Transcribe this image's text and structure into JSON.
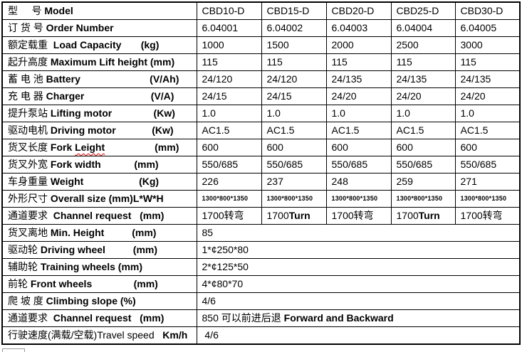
{
  "document": {
    "colors": {
      "background": "#ffffff",
      "table_border": "#000000",
      "text": "#000000",
      "spellcheck_underline": "#e00000",
      "fragment_border": "#9a9a9a"
    },
    "table": {
      "models": [
        "CBD10-D",
        "CBD15-D",
        "CBD20-D",
        "CBD25-D",
        "CBD30-D"
      ],
      "rows": [
        {
          "name": "model",
          "label": [
            {
              "text": "型     号 "
            },
            {
              "text": "Model",
              "bold": true
            }
          ],
          "values": [
            "CBD10-D",
            "CBD15-D",
            "CBD20-D",
            "CBD25-D",
            "CBD30-D"
          ]
        },
        {
          "name": "order-number",
          "label": [
            {
              "text": "订 货 号 "
            },
            {
              "text": "Order Number",
              "bold": true
            }
          ],
          "values": [
            "6.04001",
            "6.04002",
            "6.04003",
            "6.04004",
            "6.04005"
          ]
        },
        {
          "name": "load-capacity",
          "label": [
            {
              "text": "额定载重  "
            },
            {
              "text": "Load Capacity       (kg)",
              "bold": true
            }
          ],
          "values": [
            "1000",
            "1500",
            "2000",
            "2500",
            "3000"
          ]
        },
        {
          "name": "max-lift-height",
          "label": [
            {
              "text": "起升高度 "
            },
            {
              "text": "Maximum Lift height (mm)",
              "bold": true
            }
          ],
          "values": [
            "115",
            "115",
            "115",
            "115",
            "115"
          ]
        },
        {
          "name": "battery",
          "label": [
            {
              "text": "蓄 电 池 "
            },
            {
              "text": "Battery                         (V/Ah)",
              "bold": true
            }
          ],
          "values": [
            "24/120",
            "24/120",
            "24/135",
            "24/135",
            "24/135"
          ]
        },
        {
          "name": "charger",
          "label": [
            {
              "text": "充 电 器 "
            },
            {
              "text": "Charger                        (V/A)",
              "bold": true
            }
          ],
          "values": [
            "24/15",
            "24/15",
            "24/20",
            "24/20",
            "24/20"
          ]
        },
        {
          "name": "lifting-motor",
          "label": [
            {
              "text": "提升泵站 "
            },
            {
              "text": "Lifting motor               (Kw)",
              "bold": true
            }
          ],
          "values": [
            "1.0",
            "1.0",
            "1.0",
            "1.0",
            "1.0"
          ]
        },
        {
          "name": "driving-motor",
          "label": [
            {
              "text": "驱动电机 "
            },
            {
              "text": "Driving motor             (Kw)",
              "bold": true
            }
          ],
          "values": [
            "AC1.5",
            "AC1.5",
            "AC1.5",
            "AC1.5",
            "AC1.5"
          ]
        },
        {
          "name": "fork-length",
          "label": [
            {
              "text": "货叉长度 "
            },
            {
              "text": "Fork ",
              "bold": true
            },
            {
              "text": "Leight",
              "bold": true,
              "wavy": true
            },
            {
              "text": "                  (mm)",
              "bold": true
            }
          ],
          "values": [
            "600",
            "600",
            "600",
            "600",
            "600"
          ]
        },
        {
          "name": "fork-width",
          "label": [
            {
              "text": "货叉外宽 "
            },
            {
              "text": "Fork width            (mm)",
              "bold": true
            }
          ],
          "values": [
            "550/685",
            "550/685",
            "550/685",
            "550/685",
            "550/685"
          ]
        },
        {
          "name": "weight",
          "label": [
            {
              "text": "车身重量 "
            },
            {
              "text": "Weight                    (Kg)",
              "bold": true
            }
          ],
          "values": [
            "226",
            "237",
            "248",
            "259",
            "271"
          ]
        },
        {
          "name": "overall-size",
          "label": [
            {
              "text": "外形尺寸 "
            },
            {
              "text": "Overall size (mm)L*W*H",
              "bold": true
            }
          ],
          "values": [
            "1300*800*1350",
            "1300*800*1350",
            "1300*800*1350",
            "1300*800*1350",
            "1300*800*1350"
          ],
          "small": true
        },
        {
          "name": "channel-request-turn",
          "label": [
            {
              "text": "通道要求  "
            },
            {
              "text": "Channel request   (mm)",
              "bold": true
            }
          ],
          "values": [
            "1700转弯",
            [
              {
                "text": "1700"
              },
              {
                "text": "Turn",
                "bold": true
              }
            ],
            "1700转弯",
            [
              {
                "text": "1700"
              },
              {
                "text": "Turn",
                "bold": true
              }
            ],
            "1700转弯"
          ]
        },
        {
          "name": "min-height",
          "label": [
            {
              "text": "货叉离地 "
            },
            {
              "text": "Min. Height          (mm)",
              "bold": true
            }
          ],
          "values": [
            "85"
          ],
          "span": 5
        },
        {
          "name": "driving-wheel",
          "label": [
            {
              "text": "驱动轮 "
            },
            {
              "text": "Driving wheel          (mm)",
              "bold": true
            }
          ],
          "values": [
            "1*¢250*80"
          ],
          "span": 5
        },
        {
          "name": "training-wheels",
          "label": [
            {
              "text": "辅助轮 "
            },
            {
              "text": "Training wheels (mm)",
              "bold": true
            }
          ],
          "values": [
            "2*¢125*50"
          ],
          "span": 5
        },
        {
          "name": "front-wheels",
          "label": [
            {
              "text": "前轮 "
            },
            {
              "text": "Front wheels               (mm)",
              "bold": true
            }
          ],
          "values": [
            "4*¢80*70"
          ],
          "span": 5
        },
        {
          "name": "climbing-slope",
          "label": [
            {
              "text": "爬 坡 度 "
            },
            {
              "text": "Climbing slope (%)",
              "bold": true
            }
          ],
          "values": [
            "4/6"
          ],
          "span": 5
        },
        {
          "name": "channel-request-forward",
          "label": [
            {
              "text": "通道要求  "
            },
            {
              "text": "Channel request   (mm)",
              "bold": true
            }
          ],
          "values": [
            [
              {
                "text": "850 可以前进后退 "
              },
              {
                "text": "Forward and Backward",
                "bold": true
              }
            ]
          ],
          "span": 5
        },
        {
          "name": "travel-speed",
          "label": [
            {
              "text": "行驶速度(满载/空载)Travel speed"
            },
            {
              "text": "   Km/h",
              "bold": true
            }
          ],
          "values": [
            " 4/6"
          ],
          "span": 5
        }
      ]
    }
  }
}
